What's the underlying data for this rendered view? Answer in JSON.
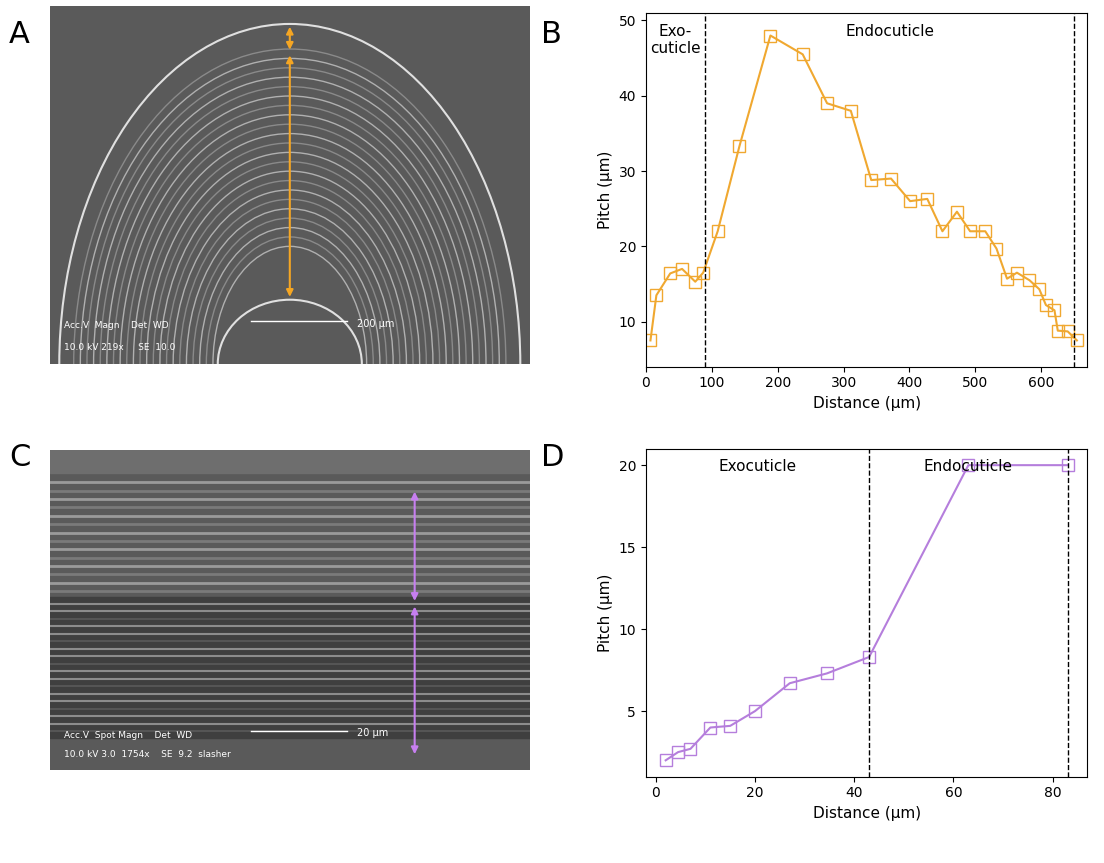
{
  "images": [
    {
      "panel": "A",
      "info": [
        "Acc.V  Magn    Det  WD",
        "10.0 kV 219x     SE  10.0"
      ],
      "scale_bar": "200 µm",
      "arrow_color": "#f5a623",
      "style": "arcs"
    },
    {
      "panel": "C",
      "info": [
        "Acc.V  Spot Magn    Det  WD",
        "10.0 kV 3.0  1754x    SE  9.2  slasher"
      ],
      "scale_bar": "20 µm",
      "arrow_color": "#c77ff0",
      "style": "layers"
    }
  ],
  "chart_data": [
    {
      "panel": "B",
      "type": "line",
      "xlabel": "Distance (µm)",
      "ylabel": "Pitch (µm)",
      "regions": [
        "Exo-\ncuticle",
        "Endocuticle"
      ],
      "boundaries": [
        90,
        650
      ],
      "x": [
        7,
        16,
        37,
        55,
        75,
        87,
        109,
        142,
        189,
        238,
        275,
        311,
        342,
        372,
        401,
        427,
        450,
        472,
        492,
        515,
        532,
        548,
        563,
        582,
        597,
        607,
        620,
        625,
        640,
        654
      ],
      "values": [
        7.5,
        13.5,
        16.4,
        17,
        15.3,
        16.5,
        22,
        33.3,
        48,
        45.5,
        39,
        38,
        28.8,
        29,
        26,
        26.3,
        22,
        24.6,
        22,
        22,
        19.7,
        15.7,
        16.5,
        15.5,
        14.3,
        12.2,
        11.5,
        8.8,
        8.7,
        7.5
      ],
      "color": "#f0a830",
      "marker": "s",
      "xlim": [
        0,
        670
      ],
      "ylim": [
        4,
        51
      ],
      "xticks": [
        0,
        100,
        200,
        300,
        400,
        500,
        600
      ],
      "yticks": [
        10,
        20,
        30,
        40,
        50
      ],
      "grid": false
    },
    {
      "panel": "D",
      "type": "line",
      "xlabel": "Distance (µm)",
      "ylabel": "Pitch (µm)",
      "regions": [
        "Exocuticle",
        "Endocuticle"
      ],
      "boundaries": [
        43,
        83
      ],
      "x": [
        2,
        4.5,
        7,
        11,
        15,
        20,
        27,
        34.5,
        43,
        63,
        83
      ],
      "values": [
        2,
        2.5,
        2.7,
        4,
        4.1,
        5,
        6.7,
        7.3,
        8.3,
        20,
        20
      ],
      "color": "#b57edc",
      "marker": "s",
      "xlim": [
        -2,
        87
      ],
      "ylim": [
        1,
        21
      ],
      "xticks": [
        0,
        20,
        40,
        60,
        80
      ],
      "yticks": [
        5,
        10,
        15,
        20
      ],
      "grid": false
    }
  ]
}
